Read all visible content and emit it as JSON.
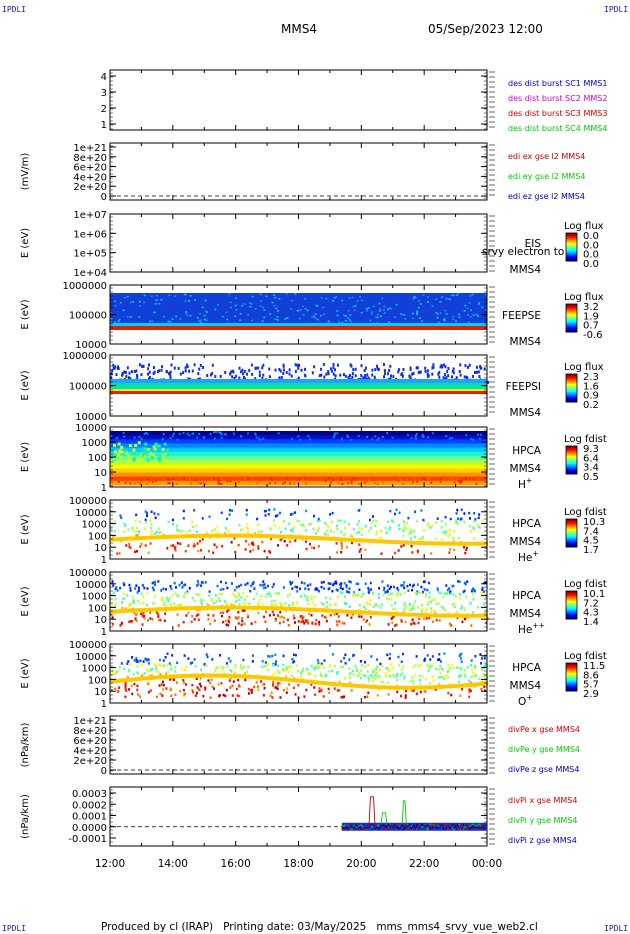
{
  "header": {
    "corner_tl": "IPDLI",
    "corner_tr": "IPDLI",
    "corner_bl": "IPDLI",
    "corner_br": "IPDLI",
    "spacecraft": "MMS4",
    "datetime": "05/Sep/2023 12:00"
  },
  "footer": {
    "produced": "Produced by cl (IRAP)",
    "printing": "Printing date: 03/May/2025",
    "script": "mms_mms4_srvy_vue_web2.cl"
  },
  "colors": {
    "blue": "#0000cc",
    "magenta": "#cc00cc",
    "red": "#cc0000",
    "green": "#00cc00",
    "navy": "#0000aa"
  },
  "chart_data": [
    {
      "type": "line",
      "id": "p1",
      "title": "",
      "ylabel": "",
      "y_ticks": [
        "4",
        "3",
        "2",
        "1"
      ],
      "legend": [
        {
          "text": "des dist burst SC1 MMS1",
          "color": "#0000cc"
        },
        {
          "text": "des dist burst SC2 MMS2",
          "color": "#cc00cc"
        },
        {
          "text": "des dist burst SC3 MMS3",
          "color": "#cc0000"
        },
        {
          "text": "des dist burst SC4 MMS4",
          "color": "#00cc00"
        }
      ]
    },
    {
      "type": "line",
      "id": "p2",
      "ylabel": "(mV/m)",
      "y_ticks": [
        "1e+21",
        "8e+20",
        "6e+20",
        "4e+20",
        "2e+20",
        "0"
      ],
      "legend": [
        {
          "text": "edi ex gse l2 MMS4",
          "color": "#cc0000"
        },
        {
          "text": "edi ey gse l2 MMS4",
          "color": "#00cc00"
        },
        {
          "text": "edi ez gse l2 MMS4",
          "color": "#0000aa"
        }
      ]
    },
    {
      "type": "heatmap",
      "id": "p3",
      "ylabel": "E (eV)",
      "y_ticks": [
        "1e+07",
        "1e+06",
        "1e+05",
        "1e+04"
      ],
      "labels": [
        "EIS",
        "MMS4"
      ],
      "overlay": "srvy electron to",
      "colorbar": {
        "title": "Log flux",
        "ticks": [
          "0.0",
          "0.0",
          "0.0",
          "0.0"
        ]
      }
    },
    {
      "type": "heatmap",
      "id": "p4",
      "ylabel": "E (eV)",
      "y_ticks": [
        "1000000",
        "100000",
        "10000"
      ],
      "labels": [
        "FEEPSE",
        "MMS4"
      ],
      "colorbar": {
        "title": "Log flux",
        "ticks": [
          "3.2",
          "1.9",
          "0.7",
          "-0.6"
        ]
      }
    },
    {
      "type": "heatmap",
      "id": "p5",
      "ylabel": "E (eV)",
      "y_ticks": [
        "1000000",
        "100000",
        "10000"
      ],
      "labels": [
        "FEEPSI",
        "MMS4"
      ],
      "colorbar": {
        "title": "Log flux",
        "ticks": [
          "2.3",
          "1.6",
          "0.9",
          "0.2"
        ]
      }
    },
    {
      "type": "heatmap",
      "id": "p6",
      "ylabel": "E (eV)",
      "y_ticks": [
        "10000",
        "1000",
        "100",
        "10",
        "1"
      ],
      "labels": [
        "HPCA",
        "MMS4"
      ],
      "species": "H",
      "species_sup": "+",
      "colorbar": {
        "title": "Log fdist",
        "ticks": [
          "9.3",
          "6.4",
          "3.4",
          "0.5"
        ]
      }
    },
    {
      "type": "heatmap",
      "id": "p7",
      "ylabel": "E (eV)",
      "y_ticks": [
        "100000",
        "10000",
        "1000",
        "100",
        "10",
        "1"
      ],
      "labels": [
        "HPCA",
        "MMS4"
      ],
      "species": "He",
      "species_sup": "+",
      "colorbar": {
        "title": "Log fdist",
        "ticks": [
          "10.3",
          "7.4",
          "4.5",
          "1.7"
        ]
      }
    },
    {
      "type": "heatmap",
      "id": "p8",
      "ylabel": "E (eV)",
      "y_ticks": [
        "100000",
        "10000",
        "1000",
        "100",
        "10",
        "1"
      ],
      "labels": [
        "HPCA",
        "MMS4"
      ],
      "species": "He",
      "species_sup": "++",
      "colorbar": {
        "title": "Log fdist",
        "ticks": [
          "10.1",
          "7.2",
          "4.3",
          "1.4"
        ]
      }
    },
    {
      "type": "heatmap",
      "id": "p9",
      "ylabel": "E (eV)",
      "y_ticks": [
        "100000",
        "10000",
        "1000",
        "100",
        "10",
        "1"
      ],
      "labels": [
        "HPCA",
        "MMS4"
      ],
      "species": "O",
      "species_sup": "+",
      "colorbar": {
        "title": "Log fdist",
        "ticks": [
          "11.5",
          "8.6",
          "5.7",
          "2.9"
        ]
      }
    },
    {
      "type": "line",
      "id": "p10",
      "ylabel": "(nPa/km)",
      "y_ticks": [
        "1e+21",
        "8e+20",
        "6e+20",
        "4e+20",
        "2e+20",
        "0"
      ],
      "legend": [
        {
          "text": "divPe x gse MMS4",
          "color": "#cc0000"
        },
        {
          "text": "divPe y gse MMS4",
          "color": "#00cc00"
        },
        {
          "text": "divPe z gse MMS4",
          "color": "#0000aa"
        }
      ]
    },
    {
      "type": "line",
      "id": "p11",
      "ylabel": "(nPa/km)",
      "y_ticks": [
        "0.0003",
        "0.0002",
        "0.0001",
        "0.0000",
        "-0.0001"
      ],
      "legend": [
        {
          "text": "divPi x gse MMS4",
          "color": "#cc0000"
        },
        {
          "text": "divPi y gse MMS4",
          "color": "#00cc00"
        },
        {
          "text": "divPi z gse MMS4",
          "color": "#0000aa"
        }
      ]
    }
  ],
  "x_axis": {
    "tick_labels": [
      "12:00",
      "14:00",
      "16:00",
      "18:00",
      "20:00",
      "22:00",
      "00:00"
    ]
  }
}
